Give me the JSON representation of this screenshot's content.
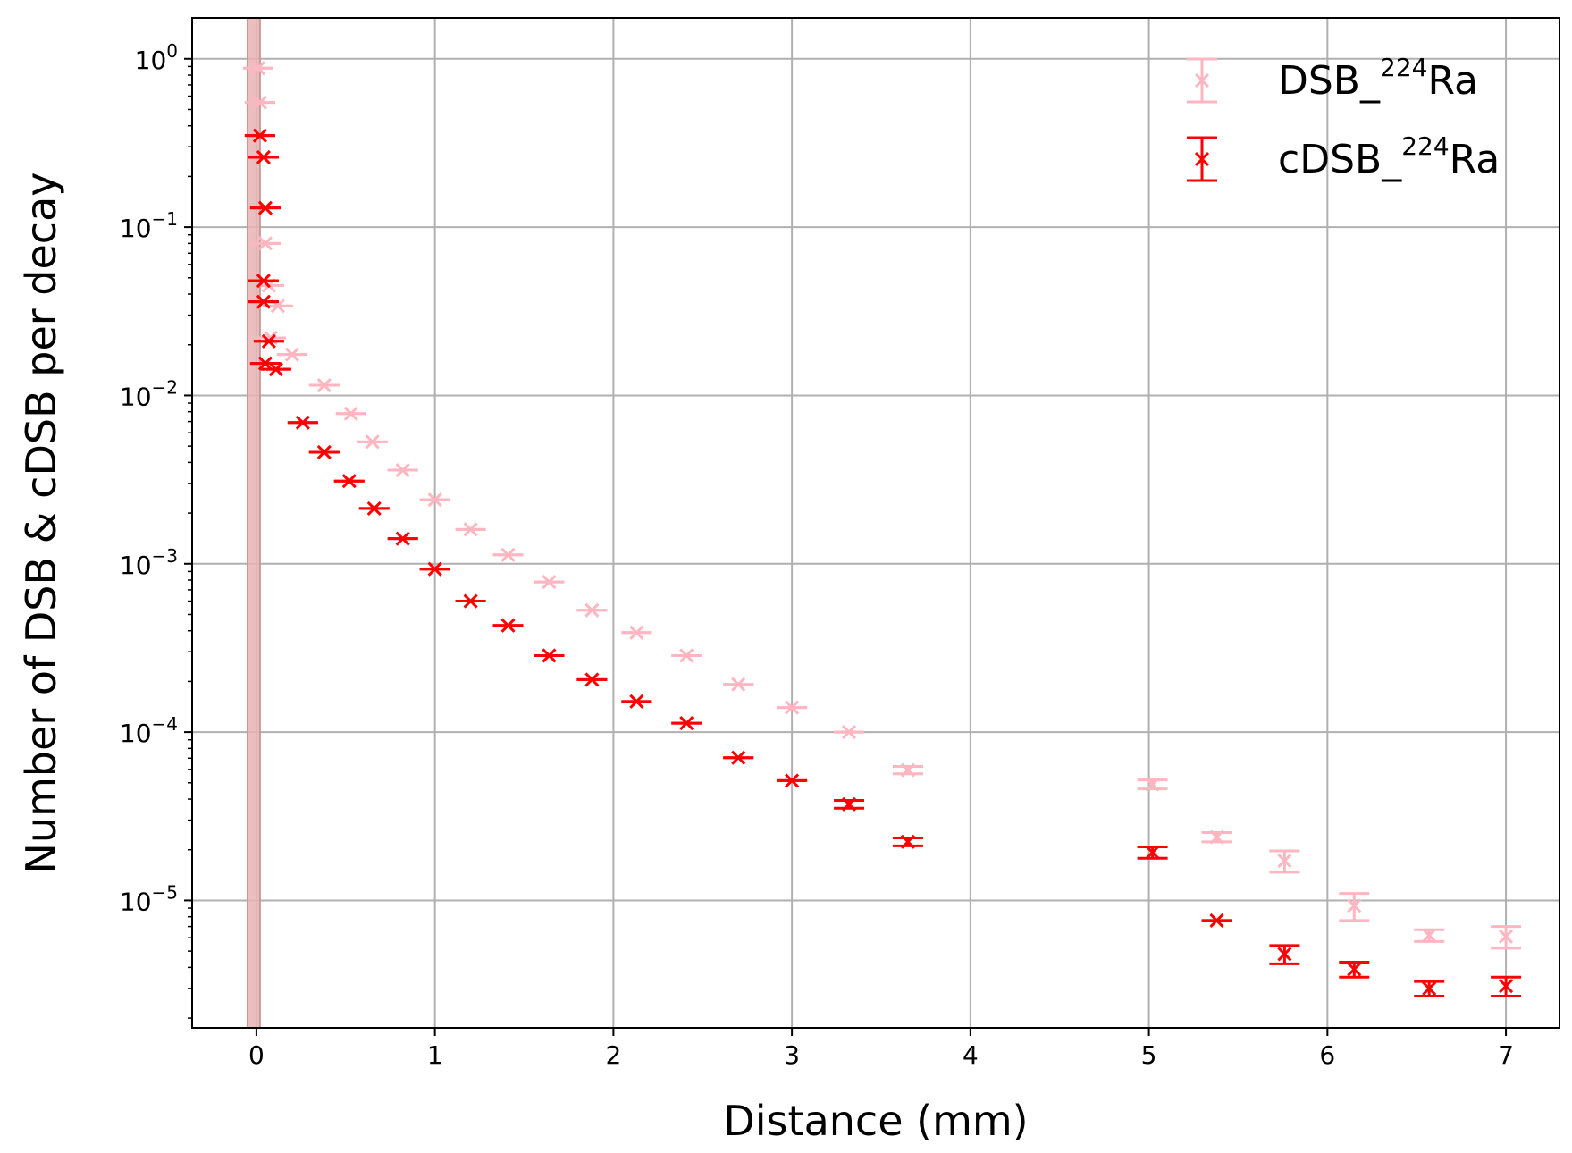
{
  "chart_data": {
    "type": "scatter",
    "xlabel": "Distance (mm)",
    "ylabel": "Number of DSB & cDSB per decay",
    "xlim": [
      -0.36,
      7.3
    ],
    "ylim": [
      1.75e-06,
      1.75
    ],
    "yscale": "log",
    "grid": true,
    "legend_position": "top-right",
    "x_ticks": [
      {
        "value": 0,
        "label": "0"
      },
      {
        "value": 1,
        "label": "1"
      },
      {
        "value": 2,
        "label": "2"
      },
      {
        "value": 3,
        "label": "3"
      },
      {
        "value": 4,
        "label": "4"
      },
      {
        "value": 5,
        "label": "5"
      },
      {
        "value": 6,
        "label": "6"
      },
      {
        "value": 7,
        "label": "7"
      }
    ],
    "y_ticks": [
      {
        "value": 1,
        "base": "10",
        "exp": "0"
      },
      {
        "value": 0.1,
        "base": "10",
        "exp": "−1"
      },
      {
        "value": 0.01,
        "base": "10",
        "exp": "−2"
      },
      {
        "value": 0.001,
        "base": "10",
        "exp": "−3"
      },
      {
        "value": 0.0001,
        "base": "10",
        "exp": "−4"
      },
      {
        "value": 1e-05,
        "base": "10",
        "exp": "−5"
      }
    ],
    "source_band": {
      "x0": -0.05,
      "x1": 0.02,
      "color": "#e8b4b4"
    },
    "series": [
      {
        "name": "DSB_",
        "name_sup": "224",
        "name_suffix": "Ra",
        "color": "#ffb6c1",
        "points": [
          {
            "x": 0.01,
            "y": 0.88,
            "err": 0
          },
          {
            "x": 0.02,
            "y": 0.55,
            "err": 0
          },
          {
            "x": 0.05,
            "y": 0.08,
            "err": 0
          },
          {
            "x": 0.07,
            "y": 0.045,
            "err": 0
          },
          {
            "x": 0.12,
            "y": 0.034,
            "err": 0
          },
          {
            "x": 0.08,
            "y": 0.022,
            "err": 0
          },
          {
            "x": 0.2,
            "y": 0.0175,
            "err": 0
          },
          {
            "x": 0.38,
            "y": 0.0115,
            "err": 0
          },
          {
            "x": 0.53,
            "y": 0.0078,
            "err": 0
          },
          {
            "x": 0.65,
            "y": 0.0053,
            "err": 0
          },
          {
            "x": 0.82,
            "y": 0.0036,
            "err": 0
          },
          {
            "x": 1.0,
            "y": 0.0024,
            "err": 0
          },
          {
            "x": 1.2,
            "y": 0.0016,
            "err": 0
          },
          {
            "x": 1.41,
            "y": 0.00113,
            "err": 0
          },
          {
            "x": 1.64,
            "y": 0.00078,
            "err": 0
          },
          {
            "x": 1.88,
            "y": 0.00053,
            "err": 0
          },
          {
            "x": 2.13,
            "y": 0.00039,
            "err": 0
          },
          {
            "x": 2.41,
            "y": 0.000285,
            "err": 0
          },
          {
            "x": 2.7,
            "y": 0.000192,
            "err": 0
          },
          {
            "x": 3.0,
            "y": 0.00014,
            "err": 0
          },
          {
            "x": 3.32,
            "y": 0.0001,
            "err": 0
          },
          {
            "x": 3.65,
            "y": 5.95e-05,
            "err": 3e-06
          },
          {
            "x": 5.02,
            "y": 4.9e-05,
            "err": 3e-06
          },
          {
            "x": 5.38,
            "y": 2.38e-05,
            "err": 1.5e-06
          },
          {
            "x": 5.76,
            "y": 1.72e-05,
            "err": 2.5e-06
          },
          {
            "x": 6.15,
            "y": 9.3e-06,
            "err": 1.7e-06
          },
          {
            "x": 6.57,
            "y": 6.2e-06,
            "err": 5e-07
          },
          {
            "x": 7.0,
            "y": 6.1e-06,
            "err": 9e-07
          }
        ]
      },
      {
        "name": "cDSB_",
        "name_sup": "224",
        "name_suffix": "Ra",
        "color": "#ff0000",
        "points": [
          {
            "x": 0.02,
            "y": 0.35,
            "err": 0
          },
          {
            "x": 0.04,
            "y": 0.26,
            "err": 0
          },
          {
            "x": 0.05,
            "y": 0.13,
            "err": 0
          },
          {
            "x": 0.04,
            "y": 0.048,
            "err": 0
          },
          {
            "x": 0.04,
            "y": 0.036,
            "err": 0
          },
          {
            "x": 0.07,
            "y": 0.021,
            "err": 0
          },
          {
            "x": 0.05,
            "y": 0.0155,
            "err": 0
          },
          {
            "x": 0.11,
            "y": 0.0143,
            "err": 0
          },
          {
            "x": 0.26,
            "y": 0.0069,
            "err": 0
          },
          {
            "x": 0.38,
            "y": 0.0046,
            "err": 0
          },
          {
            "x": 0.52,
            "y": 0.0031,
            "err": 0
          },
          {
            "x": 0.66,
            "y": 0.00213,
            "err": 0
          },
          {
            "x": 0.82,
            "y": 0.00141,
            "err": 0
          },
          {
            "x": 1.0,
            "y": 0.00093,
            "err": 0
          },
          {
            "x": 1.2,
            "y": 0.0006,
            "err": 0
          },
          {
            "x": 1.41,
            "y": 0.00043,
            "err": 0
          },
          {
            "x": 1.64,
            "y": 0.000285,
            "err": 0
          },
          {
            "x": 1.88,
            "y": 0.000205,
            "err": 0
          },
          {
            "x": 2.13,
            "y": 0.000152,
            "err": 0
          },
          {
            "x": 2.41,
            "y": 0.000113,
            "err": 0
          },
          {
            "x": 2.7,
            "y": 7.05e-05,
            "err": 0
          },
          {
            "x": 3.0,
            "y": 5.15e-05,
            "err": 0
          },
          {
            "x": 3.32,
            "y": 3.73e-05,
            "err": 2e-06
          },
          {
            "x": 3.65,
            "y": 2.23e-05,
            "err": 1.2e-06
          },
          {
            "x": 5.02,
            "y": 1.93e-05,
            "err": 1.5e-06
          },
          {
            "x": 5.38,
            "y": 7.6e-06,
            "err": 0
          },
          {
            "x": 5.76,
            "y": 4.8e-06,
            "err": 6e-07
          },
          {
            "x": 6.15,
            "y": 3.9e-06,
            "err": 4e-07
          },
          {
            "x": 6.57,
            "y": 3e-06,
            "err": 3e-07
          },
          {
            "x": 7.0,
            "y": 3.1e-06,
            "err": 4e-07
          }
        ]
      }
    ]
  }
}
